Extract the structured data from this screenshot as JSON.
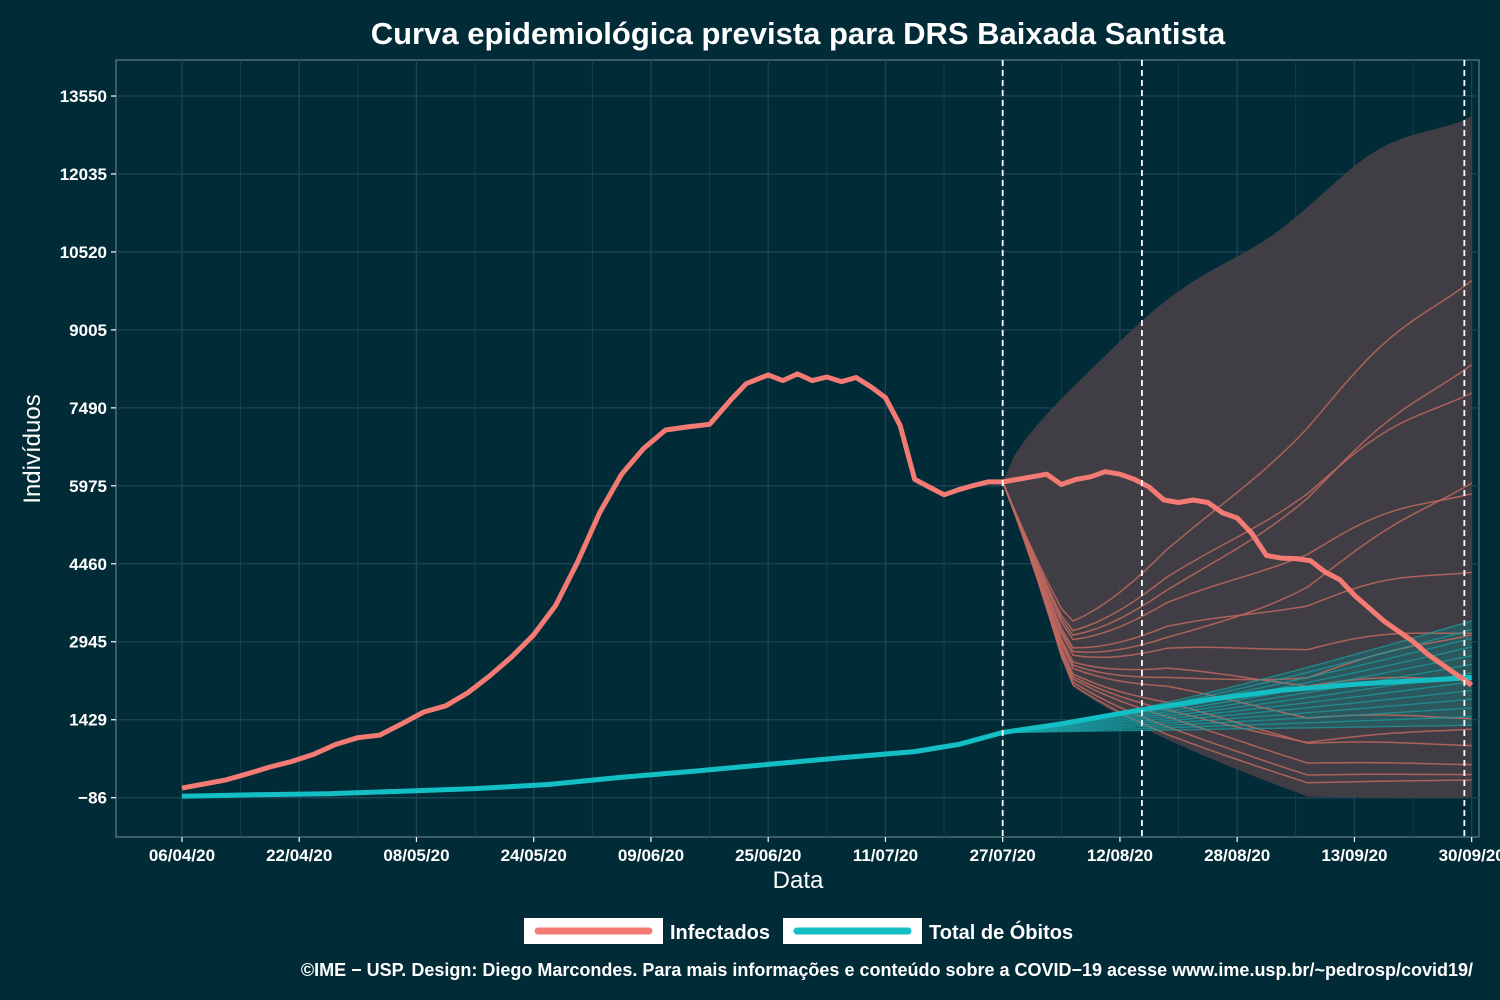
{
  "chart_data": {
    "type": "line",
    "title": "Curva epidemiológica prevista para DRS Baixada Santista",
    "xlabel": "Data",
    "ylabel": "Indivíduos",
    "x_tick_labels": [
      "06/04/20",
      "22/04/20",
      "08/05/20",
      "24/05/20",
      "09/06/20",
      "25/06/20",
      "11/07/20",
      "27/07/20",
      "12/08/20",
      "28/08/20",
      "13/09/20",
      "30/09/20"
    ],
    "y_ticks": [
      -86,
      1429,
      2945,
      4460,
      5975,
      7490,
      9005,
      10520,
      12035,
      13550
    ],
    "y_tick_labels": [
      "−86",
      "1429",
      "2945",
      "4460",
      "5975",
      "7490",
      "9005",
      "10520",
      "12035",
      "13550"
    ],
    "ylim": [
      -850,
      14250
    ],
    "xlim_days": [
      -9,
      177
    ],
    "x_start_date": "2020-04-06",
    "vlines_days": [
      112,
      131,
      175
    ],
    "grid": true,
    "legend_position": "bottom",
    "colors": {
      "background": "#022b38",
      "grid": "#1e4552",
      "infectados": "#f37b73",
      "obitos": "#13bfc4",
      "ribbon": "#454045",
      "sim_infectados": "#c0675f",
      "sim_obitos": "#1c9ea2"
    },
    "series": [
      {
        "name": "Infectados",
        "x_days": [
          0,
          3,
          6,
          9,
          12,
          15,
          18,
          21,
          24,
          27,
          30,
          33,
          36,
          39,
          42,
          45,
          48,
          51,
          54,
          57,
          60,
          63,
          66,
          69,
          72,
          75,
          77,
          80,
          82,
          84,
          86,
          88,
          90,
          92,
          94,
          96,
          98,
          100,
          102,
          104,
          106,
          108,
          110,
          112
        ],
        "values": [
          100,
          180,
          260,
          380,
          510,
          620,
          760,
          950,
          1080,
          1130,
          1350,
          1580,
          1700,
          1950,
          2280,
          2650,
          3080,
          3650,
          4500,
          5450,
          6200,
          6700,
          7060,
          7120,
          7170,
          7660,
          7960,
          8130,
          8020,
          8150,
          8020,
          8090,
          8000,
          8080,
          7900,
          7690,
          7150,
          6100,
          5950,
          5800,
          5900,
          5980,
          6050,
          6050
        ],
        "projection_x_days": [
          112,
          114,
          116,
          118,
          120,
          122,
          124,
          126,
          128,
          130,
          132,
          134,
          136,
          138,
          140,
          142,
          144,
          146,
          148,
          150,
          152,
          154,
          156,
          158,
          160,
          162,
          164,
          166,
          168,
          170,
          172,
          174,
          176
        ],
        "projection_values": [
          6050,
          6100,
          6150,
          6200,
          6000,
          6100,
          6150,
          6250,
          6200,
          6100,
          5950,
          5700,
          5650,
          5700,
          5650,
          5450,
          5350,
          5050,
          4620,
          4570,
          4560,
          4520,
          4300,
          4150,
          3850,
          3600,
          3350,
          3150,
          2950,
          2700,
          2500,
          2300,
          2100
        ]
      },
      {
        "name": "Total de Óbitos",
        "x_days": [
          0,
          10,
          20,
          30,
          40,
          50,
          60,
          70,
          80,
          90,
          100,
          106,
          112
        ],
        "values": [
          -60,
          -30,
          -10,
          40,
          90,
          170,
          310,
          430,
          560,
          690,
          810,
          950,
          1180
        ],
        "projection_x_days": [
          112,
          120,
          130,
          140,
          150,
          160,
          170,
          176
        ],
        "projection_values": [
          1180,
          1350,
          1600,
          1820,
          2000,
          2120,
          2200,
          2250
        ]
      }
    ]
  },
  "legend": {
    "items": [
      {
        "label": "Infectados",
        "color": "#f37b73"
      },
      {
        "label": "Total de Óbitos",
        "color": "#13bfc4"
      }
    ]
  },
  "footer": {
    "credit": "©IME − USP. Design: Diego Marcondes. Para mais informações e conteúdo sobre a COVID−19 acesse www.ime.usp.br/~pedrosp/covid19/"
  }
}
